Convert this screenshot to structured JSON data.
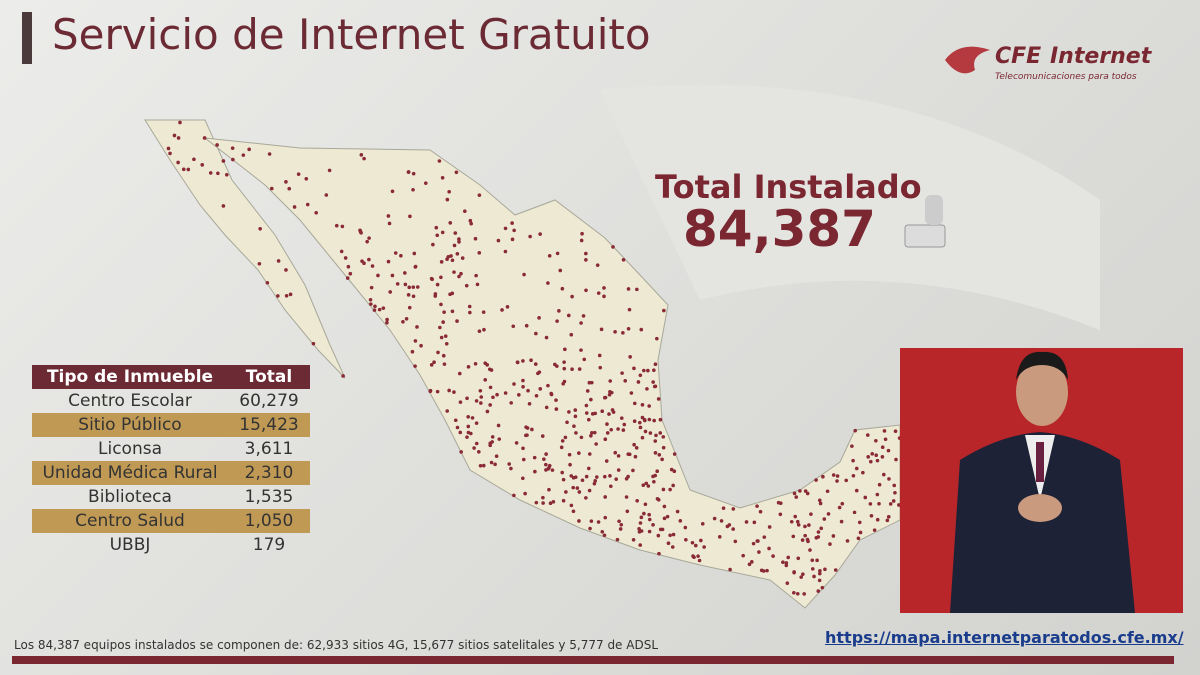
{
  "header": {
    "title": "Servicio de Internet Gratuito",
    "logo": {
      "brand": "CFE",
      "product": "Internet",
      "tagline": "Telecomunicaciones para todos"
    }
  },
  "total": {
    "label": "Total Instalado",
    "value": "84,387"
  },
  "table": {
    "columns": [
      "Tipo de Inmueble",
      "Total"
    ],
    "rows": [
      [
        "Centro Escolar",
        "60,279"
      ],
      [
        "Sitio Público",
        "15,423"
      ],
      [
        "Liconsa",
        "3,611"
      ],
      [
        "Unidad Médica Rural",
        "2,310"
      ],
      [
        "Biblioteca",
        "1,535"
      ],
      [
        "Centro Salud",
        "1,050"
      ],
      [
        "UBBJ",
        "179"
      ]
    ]
  },
  "footer": {
    "note": "Los 84,387 equipos instalados se componen  de: 62,933 sitios 4G, 15,677 sitios satelitales y 5,777 de ADSL",
    "url": "https://mapa.internetparatodos.cfe.mx/"
  }
}
